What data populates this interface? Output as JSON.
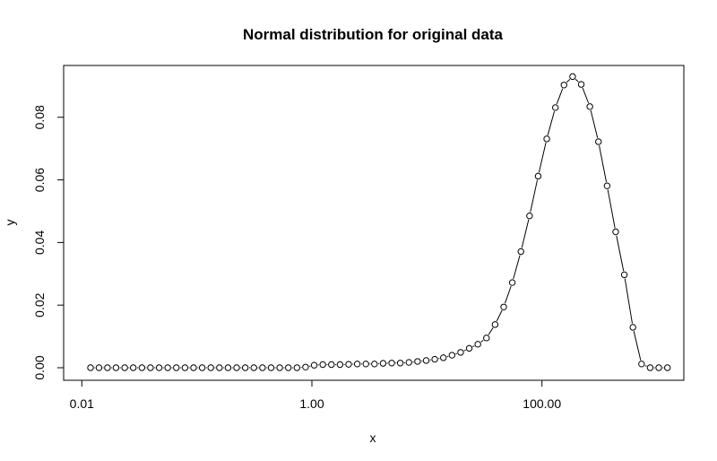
{
  "chart_data": {
    "type": "line",
    "title": "Normal distribution for original data",
    "xlabel": "x",
    "ylabel": "y",
    "x_scale": "log",
    "xlim": [
      0.01,
      1000
    ],
    "ylim": [
      0,
      0.093
    ],
    "x_ticks": [
      {
        "value": 0.01,
        "label": "0.01"
      },
      {
        "value": 1,
        "label": "1.00"
      },
      {
        "value": 100,
        "label": "100.00"
      }
    ],
    "y_ticks": [
      {
        "value": 0,
        "label": "0.00"
      },
      {
        "value": 0.02,
        "label": "0.02"
      },
      {
        "value": 0.04,
        "label": "0.04"
      },
      {
        "value": 0.06,
        "label": "0.06"
      },
      {
        "value": 0.08,
        "label": "0.08"
      }
    ],
    "grid": false,
    "series": [
      {
        "style": "both",
        "x": [
          0.0119,
          0.0141,
          0.0167,
          0.0198,
          0.0236,
          0.028,
          0.0333,
          0.0395,
          0.047,
          0.0558,
          0.0663,
          0.0788,
          0.0936,
          0.1112,
          0.1322,
          0.157,
          0.1866,
          0.2217,
          0.2634,
          0.313,
          0.3719,
          0.4419,
          0.5251,
          0.6239,
          0.7413,
          0.8808,
          1.0466,
          1.2435,
          1.4775,
          1.7556,
          2.086,
          2.479,
          2.945,
          3.499,
          4.158,
          4.94,
          5.87,
          6.975,
          8.288,
          9.848,
          11.7,
          13.9,
          16.52,
          19.63,
          23.32,
          27.71,
          32.93,
          39.12,
          46.49,
          55.24,
          65.63,
          77.99,
          92.66,
          110.1,
          130.8,
          155.4,
          184.7,
          219.5,
          260.8,
          309.8,
          368.2,
          437.4,
          519.8,
          617.6,
          733.9,
          872.0,
          1036.2,
          1231.2
        ],
        "y": [
          0,
          0,
          0,
          0,
          0,
          0,
          0,
          0,
          0,
          0,
          0,
          0,
          0,
          0,
          0,
          0,
          0,
          0,
          0,
          0,
          0,
          0,
          0,
          0,
          0,
          0.0002,
          0.0008,
          0.001,
          0.001,
          0.001,
          0.0011,
          0.0012,
          0.0012,
          0.0012,
          0.0014,
          0.0015,
          0.0015,
          0.0017,
          0.002,
          0.0023,
          0.0027,
          0.0032,
          0.004,
          0.0049,
          0.0062,
          0.0075,
          0.0095,
          0.0138,
          0.0194,
          0.0272,
          0.0371,
          0.0485,
          0.0612,
          0.0731,
          0.0831,
          0.0903,
          0.093,
          0.0905,
          0.0834,
          0.0722,
          0.0581,
          0.0434,
          0.0297,
          0.0129,
          0.0012,
          0,
          0,
          0
        ]
      }
    ]
  }
}
